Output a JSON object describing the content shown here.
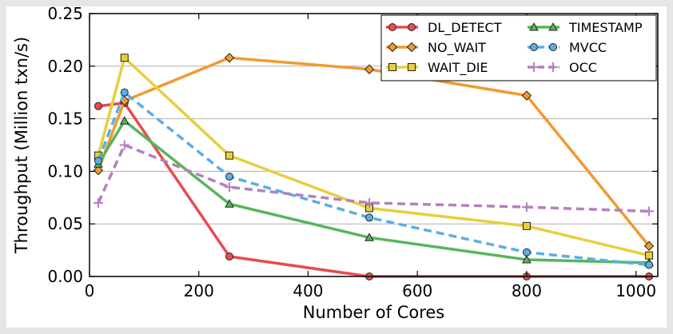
{
  "chart_data": {
    "type": "line",
    "xlabel": "Number of Cores",
    "ylabel": "Throughput (Million txn/s)",
    "xlim": [
      0,
      1040
    ],
    "ylim": [
      0,
      0.25
    ],
    "xticks": [
      0,
      200,
      400,
      600,
      800,
      1000
    ],
    "xtick_labels": [
      "0",
      "200",
      "400",
      "600",
      "800",
      "1000"
    ],
    "yticks": [
      0,
      0.05,
      0.1,
      0.15,
      0.2,
      0.25
    ],
    "ytick_labels": [
      "0.00",
      "0.05",
      "0.10",
      "0.15",
      "0.20",
      "0.25"
    ],
    "grid": "horizontal",
    "legend_position": "top-right",
    "x": [
      16,
      64,
      256,
      512,
      800,
      1024
    ],
    "series": [
      {
        "name": "DL_DETECT",
        "values": [
          0.162,
          0.165,
          0.019,
          0.0,
          0.0,
          0.0
        ],
        "color": "#e84c4c",
        "marker": "circle",
        "dash": "solid"
      },
      {
        "name": "NO_WAIT",
        "values": [
          0.101,
          0.167,
          0.208,
          0.197,
          0.172,
          0.029
        ],
        "color": "#f19a2e",
        "marker": "diamond",
        "dash": "solid"
      },
      {
        "name": "WAIT_DIE",
        "values": [
          0.115,
          0.208,
          0.115,
          0.065,
          0.048,
          0.02
        ],
        "color": "#e6cf3c",
        "marker": "square",
        "dash": "solid"
      },
      {
        "name": "TIMESTAMP",
        "values": [
          0.107,
          0.148,
          0.069,
          0.037,
          0.016,
          0.013
        ],
        "color": "#57b55a",
        "marker": "triangle",
        "dash": "solid"
      },
      {
        "name": "MVCC",
        "values": [
          0.11,
          0.175,
          0.095,
          0.056,
          0.023,
          0.011
        ],
        "color": "#5aaee6",
        "marker": "circle",
        "dash": "dashed"
      },
      {
        "name": "OCC",
        "values": [
          0.07,
          0.125,
          0.085,
          0.07,
          0.066,
          0.062
        ],
        "color": "#b57fc0",
        "marker": "plus",
        "dash": "dashed"
      }
    ]
  }
}
